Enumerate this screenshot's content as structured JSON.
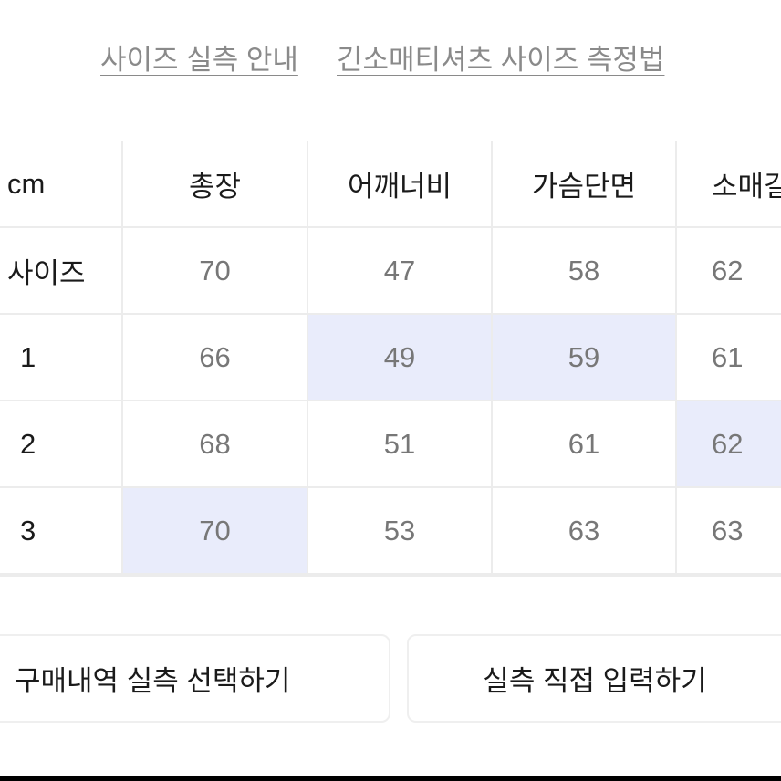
{
  "links": {
    "size_guide": "사이즈 실측 안내",
    "measure_method": "긴소매티셔츠 사이즈 측정법"
  },
  "table": {
    "unit": "cm",
    "columns": [
      "총장",
      "어깨너비",
      "가슴단면",
      "소매길"
    ],
    "rows": [
      {
        "label": "사이즈",
        "values": [
          "70",
          "47",
          "58",
          "62"
        ]
      },
      {
        "label": "1",
        "values": [
          "66",
          "49",
          "59",
          "61"
        ]
      },
      {
        "label": "2",
        "values": [
          "68",
          "51",
          "61",
          "62"
        ]
      },
      {
        "label": "3",
        "values": [
          "70",
          "53",
          "63",
          "63"
        ]
      }
    ],
    "highlight_color": "#e9ecfb"
  },
  "buttons": {
    "select_purchase": "구매내역 실측 선택하기",
    "direct_input": "실측 직접 입력하기"
  }
}
